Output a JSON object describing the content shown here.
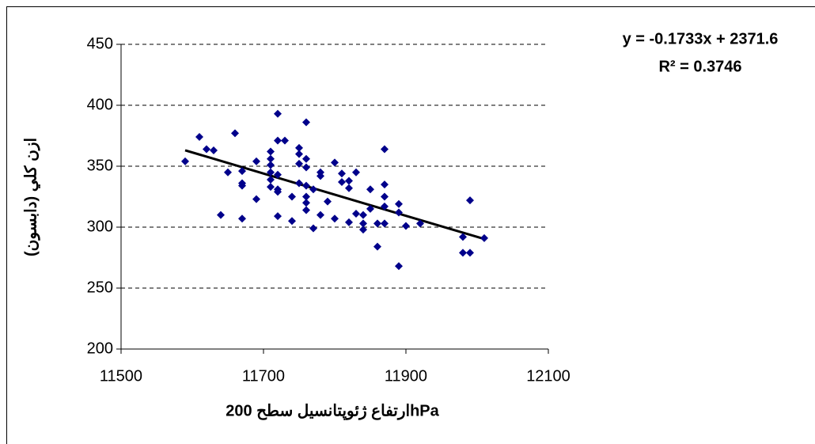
{
  "chart_data": {
    "type": "scatter",
    "x_label": "ارتفاع ژئوپتانسيل سطح 200hPa",
    "y_label": "ازن کلي (دابسون)",
    "color": "#00008b",
    "line_color": "#000000",
    "grid": true,
    "xlim": [
      11500,
      12100
    ],
    "xticks": [
      11500,
      11700,
      11900,
      12100
    ],
    "ylim": [
      200,
      450
    ],
    "yticks": [
      200,
      250,
      300,
      350,
      400,
      450
    ],
    "trendline": {
      "slope": -0.1733,
      "intercept": 2371.6,
      "equation": "y = -0.1733x + 2371.6",
      "r2_label": "R² = 0.3746",
      "r2": 0.3746
    },
    "series": [
      {
        "x": [
          11590,
          11610,
          11620,
          11630,
          11640,
          11650,
          11660,
          11670,
          11670,
          11670,
          11670,
          11690,
          11690,
          11710,
          11710,
          11710,
          11710,
          11710,
          11710,
          11720,
          11720,
          11720,
          11720,
          11720,
          11720,
          11730,
          11740,
          11740,
          11750,
          11750,
          11750,
          11750,
          11760,
          11760,
          11760,
          11760,
          11760,
          11760,
          11760,
          11770,
          11770,
          11780,
          11780,
          11780,
          11790,
          11800,
          11800,
          11810,
          11810,
          11820,
          11820,
          11820,
          11830,
          11830,
          11840,
          11840,
          11840,
          11850,
          11850,
          11860,
          11860,
          11870,
          11870,
          11870,
          11870,
          11870,
          11890,
          11890,
          11890,
          11900,
          11920,
          11980,
          11980,
          11990,
          11990,
          12010
        ],
        "values": [
          354,
          374,
          364,
          363,
          310,
          345,
          377,
          336,
          334,
          346,
          307,
          323,
          354,
          362,
          356,
          351,
          345,
          339,
          333,
          393,
          371,
          331,
          329,
          309,
          343,
          371,
          325,
          305,
          365,
          360,
          352,
          336,
          386,
          356,
          349,
          334,
          325,
          320,
          314,
          331,
          299,
          345,
          342,
          310,
          321,
          353,
          307,
          344,
          337,
          338,
          332,
          304,
          345,
          311,
          303,
          298,
          310,
          331,
          315,
          284,
          303,
          364,
          317,
          325,
          335,
          303,
          268,
          319,
          312,
          301,
          303,
          292,
          279,
          279,
          322,
          291
        ]
      }
    ]
  }
}
